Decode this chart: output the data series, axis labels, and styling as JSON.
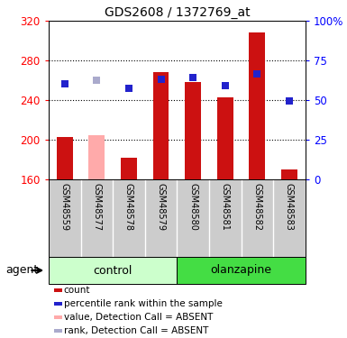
{
  "title": "GDS2608 / 1372769_at",
  "samples": [
    "GSM48559",
    "GSM48577",
    "GSM48578",
    "GSM48579",
    "GSM48580",
    "GSM48581",
    "GSM48582",
    "GSM48583"
  ],
  "bar_values": [
    202,
    204,
    182,
    268,
    258,
    242,
    308,
    170
  ],
  "bar_absent": [
    false,
    true,
    false,
    false,
    false,
    false,
    false,
    false
  ],
  "rank_values": [
    60,
    62,
    57,
    63,
    64,
    59,
    66,
    49
  ],
  "rank_absent": [
    false,
    true,
    false,
    false,
    false,
    false,
    false,
    false
  ],
  "bar_color_present": "#cc1111",
  "bar_color_absent": "#ffaaaa",
  "rank_color_present": "#2222cc",
  "rank_color_absent": "#aaaacc",
  "ylim_left": [
    160,
    320
  ],
  "ylim_right": [
    0,
    100
  ],
  "yticks_left": [
    160,
    200,
    240,
    280,
    320
  ],
  "yticks_right": [
    0,
    25,
    50,
    75,
    100
  ],
  "grid_lines": [
    200,
    240,
    280
  ],
  "control_color": "#ccffcc",
  "olanzapine_color": "#44dd44",
  "sample_box_color": "#cccccc",
  "bar_width": 0.5,
  "rank_square_size": 40,
  "figwidth": 3.85,
  "figheight": 3.75,
  "dpi": 100
}
